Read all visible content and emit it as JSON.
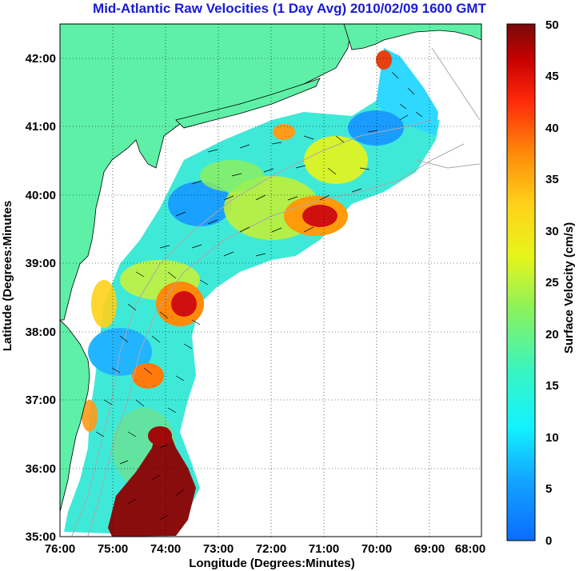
{
  "title": "Mid-Atlantic Raw Velocities (1 Day Avg) 2010/02/09 1600 GMT",
  "xlabel": "Longitude (Degrees:Minutes)",
  "ylabel": "Latitude (Degrees:Minutes",
  "x_ticks": [
    "76:00",
    "75:00",
    "74:00",
    "73:00",
    "72:00",
    "71:00",
    "70:00",
    "69:00",
    "68:00"
  ],
  "y_ticks": [
    "35:00",
    "36:00",
    "37:00",
    "38:00",
    "39:00",
    "40:00",
    "41:00",
    "42:00"
  ],
  "colorbar": {
    "label": "Surface Velocity (cm/s)",
    "ticks": [
      "0",
      "5",
      "10",
      "15",
      "20",
      "25",
      "30",
      "35",
      "40",
      "45",
      "50"
    ],
    "min": 0,
    "max": 50
  },
  "colors": {
    "land": "#5ef0a6",
    "grid": "#000000",
    "bathymetry": "#a9a9a9",
    "title": "#1a1ad6"
  },
  "chart_data": {
    "type": "heatmap",
    "x_range_deg_west": [
      76,
      68
    ],
    "y_range_deg_north": [
      35,
      42.5
    ],
    "grid": true,
    "colormap": "jet",
    "vectors": "black arrows indicating surface current direction"
  }
}
